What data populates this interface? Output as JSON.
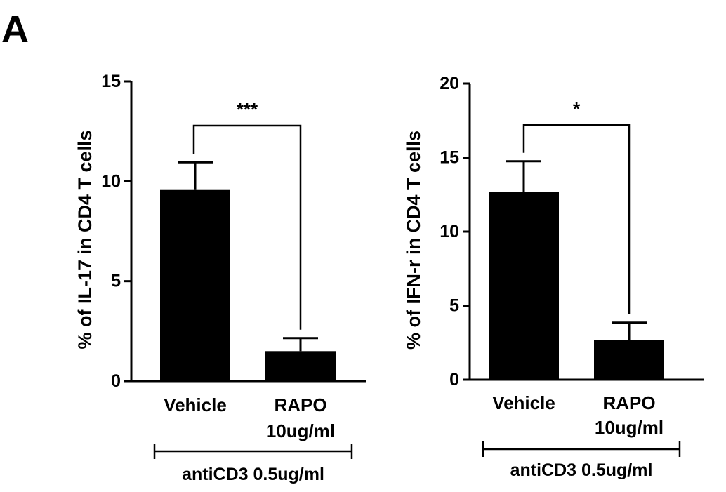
{
  "panel_label": "A",
  "colors": {
    "bar": "#000000",
    "axis": "#000000",
    "background": "#ffffff"
  },
  "chart_data": [
    {
      "type": "bar",
      "ylabel": "% of IL-17 in CD4 T cells",
      "ylim": [
        0,
        15
      ],
      "yticks": [
        0,
        5,
        10,
        15
      ],
      "categories": [
        "Vehicle",
        "RAPO"
      ],
      "category_sublabels": [
        "",
        "10ug/ml"
      ],
      "values": [
        9.6,
        1.5
      ],
      "error_upper": [
        1.35,
        0.65
      ],
      "significance": {
        "label": "***",
        "between": [
          0,
          1
        ]
      },
      "group_label": "antiCD3 0.5ug/ml",
      "grid": false,
      "legend": "none"
    },
    {
      "type": "bar",
      "ylabel": "% of IFN-r in CD4 T cells",
      "ylim": [
        0,
        20
      ],
      "yticks": [
        0,
        5,
        10,
        15,
        20
      ],
      "categories": [
        "Vehicle",
        "RAPO"
      ],
      "category_sublabels": [
        "",
        "10ug/ml"
      ],
      "values": [
        12.7,
        2.7
      ],
      "error_upper": [
        2.05,
        1.15
      ],
      "significance": {
        "label": "*",
        "between": [
          0,
          1
        ]
      },
      "group_label": "antiCD3 0.5ug/ml",
      "grid": false,
      "legend": "none"
    }
  ]
}
